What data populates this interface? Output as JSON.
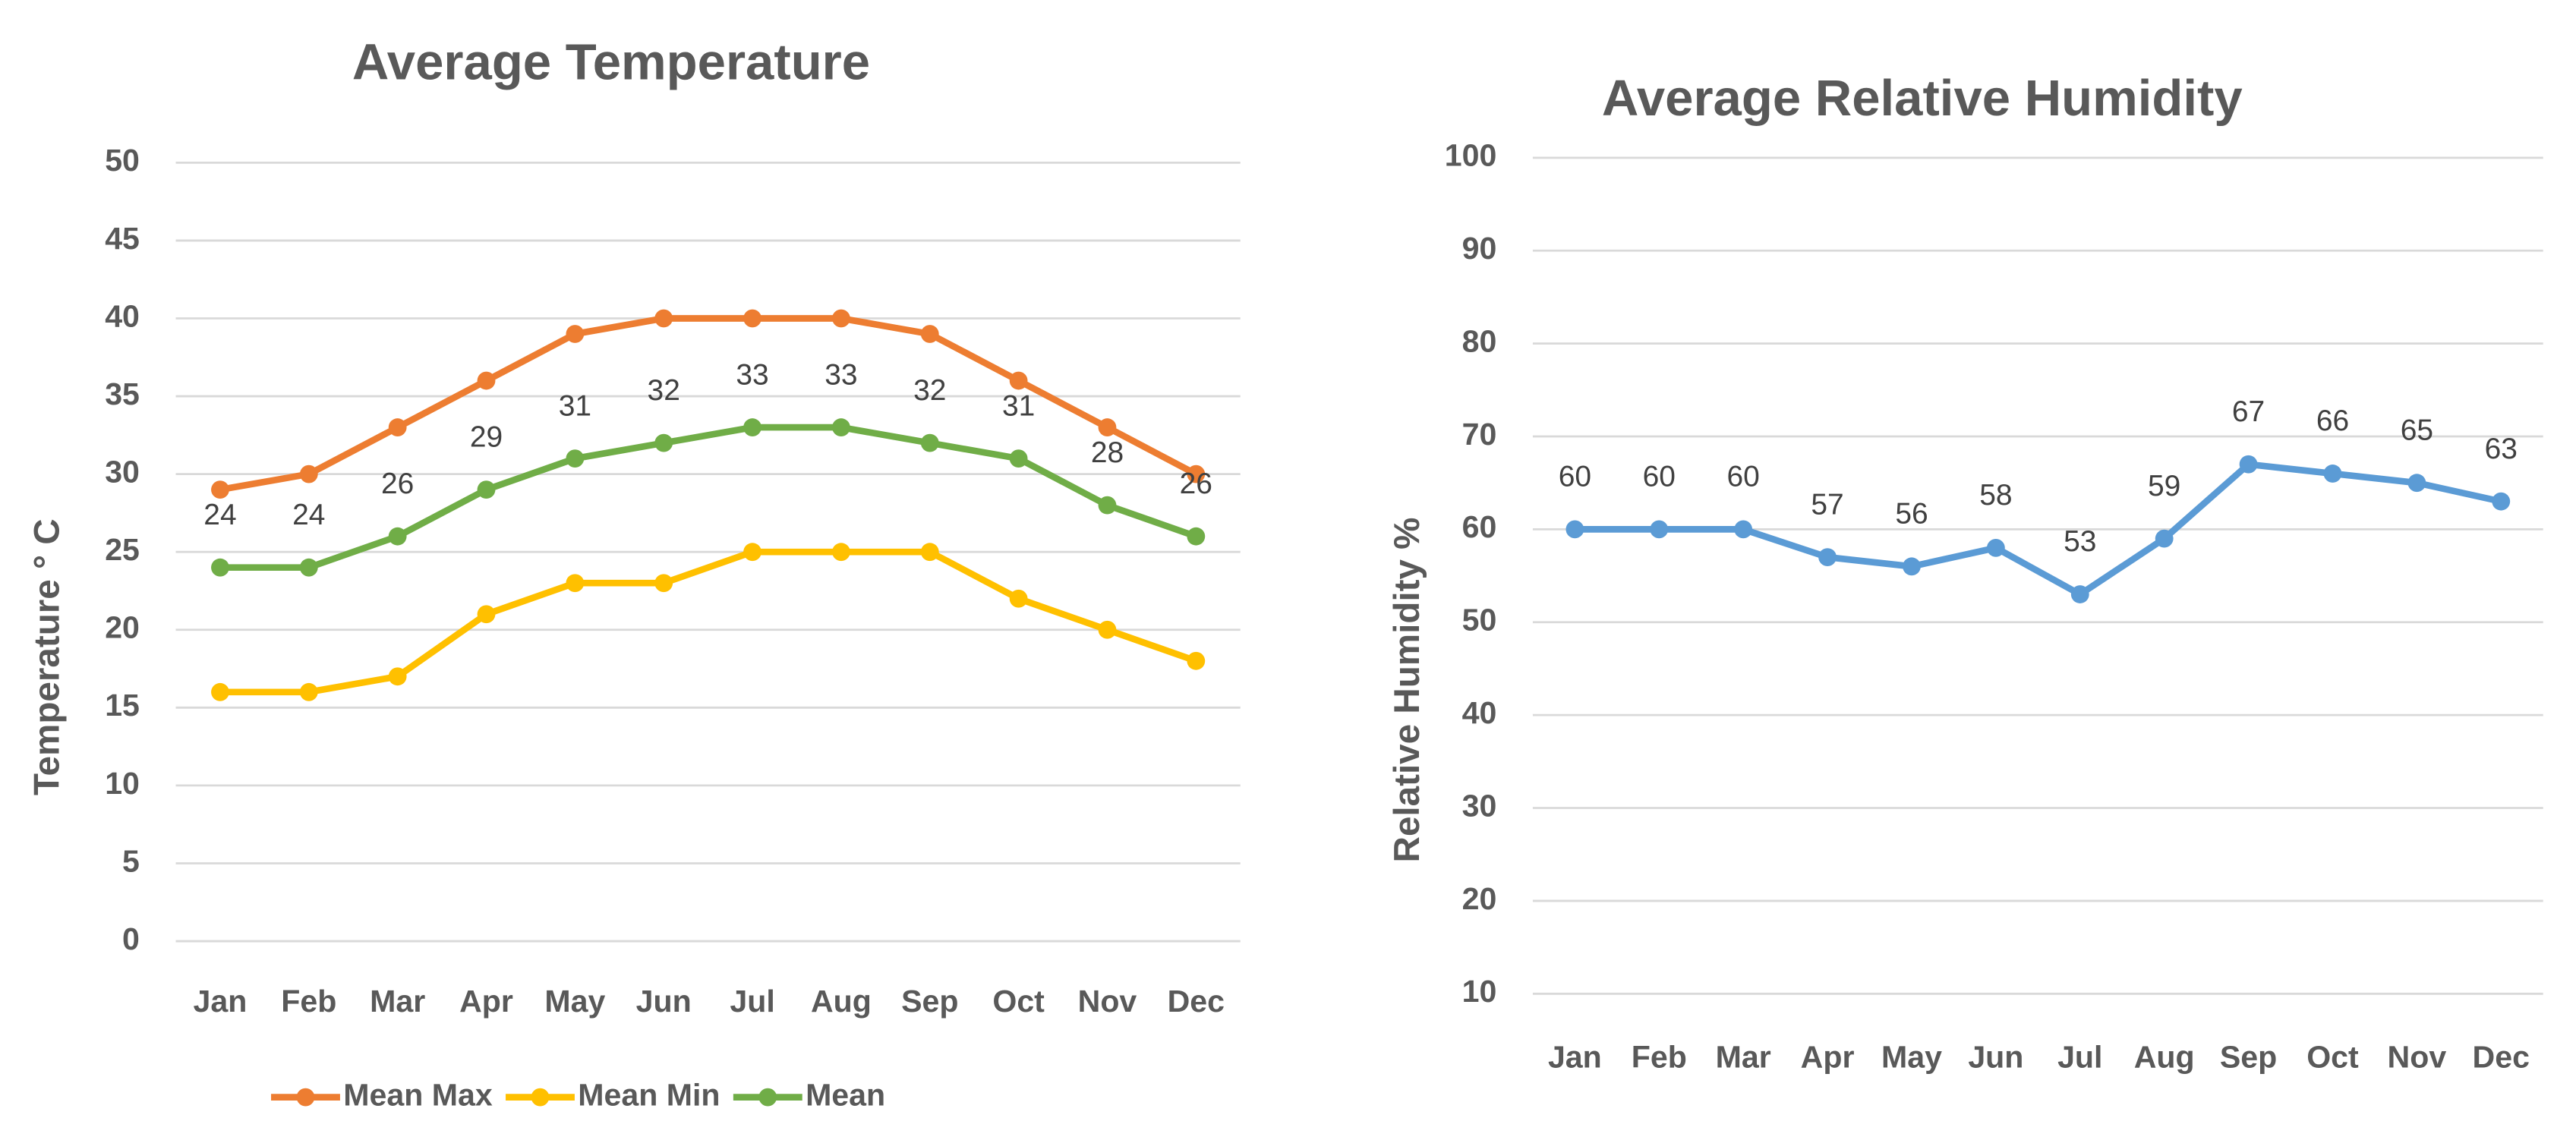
{
  "chart_data": [
    {
      "type": "line",
      "title": "Average Temperature",
      "y_label": "Temperature ° C",
      "categories": [
        "Jan",
        "Feb",
        "Mar",
        "Apr",
        "May",
        "Jun",
        "Jul",
        "Aug",
        "Sep",
        "Oct",
        "Nov",
        "Dec"
      ],
      "series": [
        {
          "name": "Mean Max",
          "color": "#ed7d31",
          "values": [
            29,
            30,
            33,
            36,
            39,
            40,
            40,
            40,
            39,
            36,
            33,
            30
          ]
        },
        {
          "name": "Mean Min",
          "color": "#ffc000",
          "values": [
            16,
            16,
            17,
            21,
            23,
            23,
            25,
            25,
            25,
            22,
            20,
            18
          ]
        },
        {
          "name": "Mean",
          "color": "#70ad47",
          "values": [
            24,
            24,
            26,
            29,
            31,
            32,
            33,
            33,
            32,
            31,
            28,
            26
          ],
          "data_labels": true
        }
      ],
      "ylim": [
        0,
        50
      ],
      "yticks": [
        0,
        5,
        10,
        15,
        20,
        25,
        30,
        35,
        40,
        45,
        50
      ],
      "grid": true,
      "legend": "bottom"
    },
    {
      "type": "line",
      "title": "Average Relative Humidity",
      "y_label": "Relative Humidity %",
      "categories": [
        "Jan",
        "Feb",
        "Mar",
        "Apr",
        "May",
        "Jun",
        "Jul",
        "Aug",
        "Sep",
        "Oct",
        "Nov",
        "Dec"
      ],
      "values": [
        60,
        60,
        60,
        57,
        56,
        58,
        53,
        59,
        67,
        66,
        65,
        63
      ],
      "color": "#5b9bd5",
      "data_labels": true,
      "ylim": [
        10,
        100
      ],
      "yticks": [
        10,
        20,
        30,
        40,
        50,
        60,
        70,
        80,
        90,
        100
      ],
      "grid": true
    }
  ]
}
